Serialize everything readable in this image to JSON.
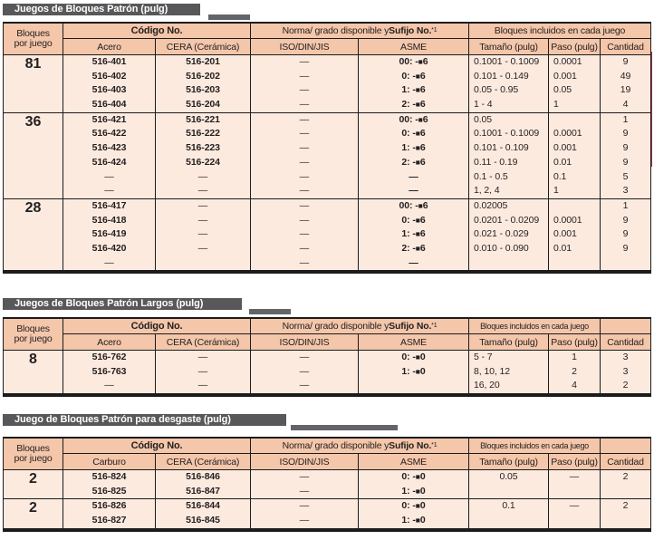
{
  "colors": {
    "title_bar": "#58585a",
    "header_bg": "#f4c6aa",
    "body_bg": "#fdeadf",
    "border": "#1c1c1c",
    "edge_marker_red": "#aa2c3e",
    "title_text": "#ffffff"
  },
  "decor": {
    "red_edge_line": true
  },
  "tables": [
    {
      "title": "Juegos de Bloques Patrón (pulg)",
      "header": {
        "blocks_col_line1": "Bloques",
        "blocks_col_line2": "por juego",
        "code_group": "Código No.",
        "material_col": "Acero",
        "cera_col": "CERA (Cerámica)",
        "norma_prefix": "Norma/ grado disponible y ",
        "norma_bold": "Sufijo No.",
        "norma_sup": "*1",
        "iso_col": "ISO/DIN/JIS",
        "asme_col": "ASME",
        "included_group": "Bloques incluidos en cada juego",
        "tamano_col": "Tamaño (pulg)",
        "paso_col": "Paso (pulg)",
        "cantidad_col": "Cantidad",
        "cantidad_separate": false
      },
      "sections": [
        {
          "blocks": "81",
          "rows": [
            {
              "c1": "516-401",
              "c2": "516-201",
              "iso": "—",
              "asme": "00: -■6",
              "tam": "0.1001 - 0.1009",
              "paso": "0.0001",
              "cant": "9"
            },
            {
              "c1": "516-402",
              "c2": "516-202",
              "iso": "—",
              "asme": "0: -■6",
              "tam": "0.101 - 0.149",
              "paso": "0.001",
              "cant": "49"
            },
            {
              "c1": "516-403",
              "c2": "516-203",
              "iso": "—",
              "asme": "1: -■6",
              "tam": "0.05 - 0.95",
              "paso": "0.05",
              "cant": "19"
            },
            {
              "c1": "516-404",
              "c2": "516-204",
              "iso": "—",
              "asme": "2: -■6",
              "tam": "1 - 4",
              "paso": "1",
              "cant": "4"
            }
          ]
        },
        {
          "blocks": "36",
          "rows": [
            {
              "c1": "516-421",
              "c2": "516-221",
              "iso": "—",
              "asme": "00: -■6",
              "tam": "0.05",
              "paso": "",
              "cant": "1"
            },
            {
              "c1": "516-422",
              "c2": "516-222",
              "iso": "—",
              "asme": "0: -■6",
              "tam": "0.1001 - 0.1009",
              "paso": "0.0001",
              "cant": "9"
            },
            {
              "c1": "516-423",
              "c2": "516-223",
              "iso": "—",
              "asme": "1: -■6",
              "tam": "0.101 - 0.109",
              "paso": "0.001",
              "cant": "9"
            },
            {
              "c1": "516-424",
              "c2": "516-224",
              "iso": "—",
              "asme": "2: -■6",
              "tam": "0.11 - 0.19",
              "paso": "0.01",
              "cant": "9"
            },
            {
              "c1": "—",
              "c2": "—",
              "iso": "—",
              "asme": "—",
              "tam": "0.1 - 0.5",
              "paso": "0.1",
              "cant": "5"
            },
            {
              "c1": "—",
              "c2": "—",
              "iso": "—",
              "asme": "—",
              "tam": "1, 2, 4",
              "paso": "1",
              "cant": "3"
            }
          ]
        },
        {
          "blocks": "28",
          "rows": [
            {
              "c1": "516-417",
              "c2": "—",
              "iso": "—",
              "asme": "00: -■6",
              "tam": "0.02005",
              "paso": "",
              "cant": "1"
            },
            {
              "c1": "516-418",
              "c2": "—",
              "iso": "—",
              "asme": "0: -■6",
              "tam": "0.0201 - 0.0209",
              "paso": "0.0001",
              "cant": "9"
            },
            {
              "c1": "516-419",
              "c2": "—",
              "iso": "—",
              "asme": "1: -■6",
              "tam": "0.021 - 0.029",
              "paso": "0.001",
              "cant": "9"
            },
            {
              "c1": "516-420",
              "c2": "—",
              "iso": "—",
              "asme": "2: -■6",
              "tam": "0.010 - 0.090",
              "paso": "0.01",
              "cant": "9"
            },
            {
              "c1": "—",
              "c2": "",
              "iso": "—",
              "asme": "—",
              "tam": "",
              "paso": "",
              "cant": ""
            }
          ]
        }
      ]
    },
    {
      "title": "Juegos de Bloques Patrón Largos (pulg)",
      "header": {
        "blocks_col_line1": "Bloques",
        "blocks_col_line2": "por juego",
        "code_group": "Código No.",
        "material_col": "Acero",
        "cera_col": "CERA (Cerámica)",
        "norma_prefix": "Norma/ grado disponible y ",
        "norma_bold": "Sufijo No.",
        "norma_sup": "*1",
        "iso_col": "ISO/DIN/JIS",
        "asme_col": "ASME",
        "included_group": "Bloques incluidos en cada juego",
        "tamano_col": "Tamaño (pulg)",
        "paso_col": "Paso (pulg)",
        "cantidad_col": "Cantidad",
        "cantidad_separate": true
      },
      "sections": [
        {
          "blocks": "8",
          "rows": [
            {
              "c1": "516-762",
              "c2": "—",
              "iso": "—",
              "asme": "0: -■0",
              "tam": "5 - 7",
              "paso": "1",
              "cant": "3"
            },
            {
              "c1": "516-763",
              "c2": "—",
              "iso": "—",
              "asme": "1: -■0",
              "tam": "8, 10, 12",
              "paso": "2",
              "cant": "3"
            },
            {
              "c1": "—",
              "c2": "—",
              "iso": "—",
              "asme": "",
              "tam": "16, 20",
              "paso": "4",
              "cant": "2"
            }
          ]
        }
      ]
    },
    {
      "title": "Juego de Bloques Patrón para desgaste (pulg)",
      "header": {
        "blocks_col_line1": "Bloques",
        "blocks_col_line2": "por juego",
        "code_group": "Código No.",
        "material_col": "Carburo",
        "cera_col": "CERA (Cerámica)",
        "norma_prefix": "Norma/ grado disponible y ",
        "norma_bold": "Sufijo No.",
        "norma_sup": "*1",
        "iso_col": "ISO/DIN/JIS",
        "asme_col": "ASME",
        "included_group": "Bloques incluidos en cada juego",
        "tamano_col": "Tamaño (pulg)",
        "paso_col": "Paso (pulg)",
        "cantidad_col": "Cantidad",
        "cantidad_separate": true
      },
      "sections": [
        {
          "blocks": "2",
          "rows": [
            {
              "c1": "516-824",
              "c2": "516-846",
              "iso": "—",
              "asme": "0: -■0",
              "tam": "0.05",
              "paso": "—",
              "cant": "2"
            },
            {
              "c1": "516-825",
              "c2": "516-847",
              "iso": "—",
              "asme": "1: -■0",
              "tam": "",
              "paso": "",
              "cant": ""
            }
          ]
        },
        {
          "blocks": "2",
          "rows": [
            {
              "c1": "516-826",
              "c2": "516-844",
              "iso": "—",
              "asme": "0: -■0",
              "tam": "0.1",
              "paso": "—",
              "cant": "2"
            },
            {
              "c1": "516-827",
              "c2": "516-845",
              "iso": "—",
              "asme": "1: -■0",
              "tam": "",
              "paso": "",
              "cant": ""
            }
          ]
        }
      ]
    }
  ]
}
